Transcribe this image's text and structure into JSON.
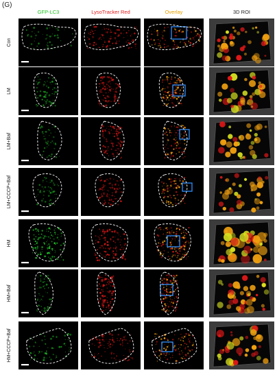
{
  "panel_label": "(G)",
  "columns": [
    {
      "label": "GFP-LC3",
      "color": "#22c322"
    },
    {
      "label": "LysoTracker Red",
      "color": "#e02020"
    },
    {
      "label": "Overlay",
      "color": "#e5a100"
    },
    {
      "label": "3D ROI",
      "color": "#222222"
    }
  ],
  "rows": [
    {
      "label": "Con",
      "green_level": 0.25,
      "red_level": 0.75
    },
    {
      "label": "LM",
      "green_level": 0.45,
      "red_level": 0.65
    },
    {
      "label": "LM+Baf",
      "green_level": 0.2,
      "red_level": 0.6
    },
    {
      "label": "LM+CCCP+Baf",
      "green_level": 0.3,
      "red_level": 0.55
    },
    {
      "label": "HM",
      "green_level": 0.85,
      "red_level": 0.9
    },
    {
      "label": "HM+Baf",
      "green_level": 0.3,
      "red_level": 0.8
    },
    {
      "label": "HM+CCCP+Baf",
      "green_level": 0.45,
      "red_level": 0.6
    }
  ],
  "colors": {
    "background_tile": "#000000",
    "roi_background": "#3c3c3c",
    "green_channel": "#22d22a",
    "red_channel": "#e01818",
    "overlay_channel": "#f0a010",
    "cell_outline": "#ffffff",
    "roi_box": "#2f8fff",
    "scale_bar": "#ffffff"
  }
}
